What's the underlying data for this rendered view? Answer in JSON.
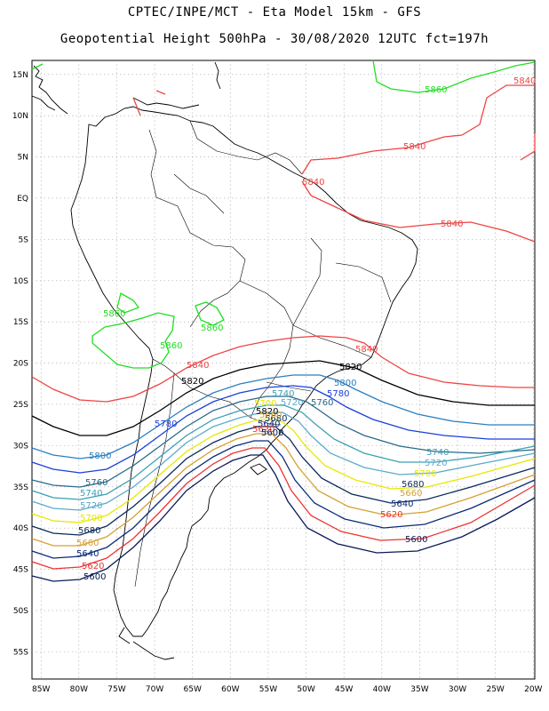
{
  "header": {
    "line1": "CPTEC/INPE/MCT -  Eta Model 15km - GFS",
    "line2": "Geopotential Height 500hPa - 30/08/2020 12UTC fct=197h"
  },
  "axes": {
    "lat_labels": [
      "15N",
      "10N",
      "5N",
      "EQ",
      "5S",
      "10S",
      "15S",
      "20S",
      "25S",
      "30S",
      "35S",
      "40S",
      "45S",
      "50S",
      "55S"
    ],
    "lat_values": [
      15,
      10,
      5,
      0,
      -5,
      -10,
      -15,
      -20,
      -25,
      -30,
      -35,
      -40,
      -45,
      -50,
      -55
    ],
    "lon_labels": [
      "85W",
      "80W",
      "75W",
      "70W",
      "65W",
      "60W",
      "55W",
      "50W",
      "45W",
      "40W",
      "35W",
      "30W",
      "25W",
      "20W"
    ],
    "lon_values": [
      -85,
      -80,
      -75,
      -70,
      -65,
      -60,
      -55,
      -50,
      -45,
      -40,
      -35,
      -30,
      -25,
      -20
    ]
  },
  "colors": {
    "c5860": "#22dd22",
    "c5840": "#ee4444",
    "c5820": "#000000",
    "c5800": "#2a7fc0",
    "c5780": "#1a3fdc",
    "c5760": "#2a6a8a",
    "c5740": "#3aa0b4",
    "c5720": "#5aaac8",
    "c5700": "#e8e800",
    "c5680": "#0a2a5a",
    "c5660": "#d6a030",
    "c5640": "#0a2a7a",
    "c5620": "#ee3333",
    "c5600": "#0a1a5a",
    "coast": "#000000",
    "grid": "#aaaaaa"
  },
  "contour_labels": [
    {
      "text": "5860",
      "color": "#22dd22"
    },
    {
      "text": "5860",
      "color": "#22dd22"
    },
    {
      "text": "5860",
      "color": "#22dd22"
    },
    {
      "text": "5860",
      "color": "#22dd22"
    },
    {
      "text": "5840",
      "color": "#ee4444"
    },
    {
      "text": "5840",
      "color": "#ee4444"
    },
    {
      "text": "5840",
      "color": "#ee4444"
    },
    {
      "text": "5840",
      "color": "#ee4444"
    },
    {
      "text": "5840",
      "color": "#ee4444"
    },
    {
      "text": "5840",
      "color": "#ee4444"
    },
    {
      "text": "5820",
      "color": "#000000"
    },
    {
      "text": "5820",
      "color": "#000000"
    },
    {
      "text": "5820",
      "color": "#000000"
    },
    {
      "text": "5800",
      "color": "#2a7fc0"
    },
    {
      "text": "5800",
      "color": "#2a7fc0"
    },
    {
      "text": "5780",
      "color": "#1a3fdc"
    },
    {
      "text": "5780",
      "color": "#1a3fdc"
    },
    {
      "text": "5760",
      "color": "#2a6a8a"
    },
    {
      "text": "5760",
      "color": "#2a6a8a"
    },
    {
      "text": "5740",
      "color": "#3aa0b4"
    },
    {
      "text": "5740",
      "color": "#3aa0b4"
    },
    {
      "text": "5740",
      "color": "#3aa0b4"
    },
    {
      "text": "5720",
      "color": "#5aaac8"
    },
    {
      "text": "5720",
      "color": "#5aaac8"
    },
    {
      "text": "5720",
      "color": "#5aaac8"
    },
    {
      "text": "5700",
      "color": "#e8e800"
    },
    {
      "text": "5700",
      "color": "#e8e800"
    },
    {
      "text": "5700",
      "color": "#e8e800"
    },
    {
      "text": "5680",
      "color": "#0a2a5a"
    },
    {
      "text": "5680",
      "color": "#0a2a5a"
    },
    {
      "text": "5680",
      "color": "#0a2a5a"
    },
    {
      "text": "5660",
      "color": "#d6a030"
    },
    {
      "text": "5660",
      "color": "#d6a030"
    },
    {
      "text": "5660",
      "color": "#d6a030"
    },
    {
      "text": "5640",
      "color": "#0a2a7a"
    },
    {
      "text": "5640",
      "color": "#0a2a7a"
    },
    {
      "text": "5640",
      "color": "#0a2a7a"
    },
    {
      "text": "5620",
      "color": "#ee3333"
    },
    {
      "text": "5620",
      "color": "#ee3333"
    },
    {
      "text": "5620",
      "color": "#ee3333"
    },
    {
      "text": "5600",
      "color": "#0a1a5a"
    },
    {
      "text": "5600",
      "color": "#0a1a5a"
    },
    {
      "text": "5600",
      "color": "#0a1a5a"
    }
  ]
}
